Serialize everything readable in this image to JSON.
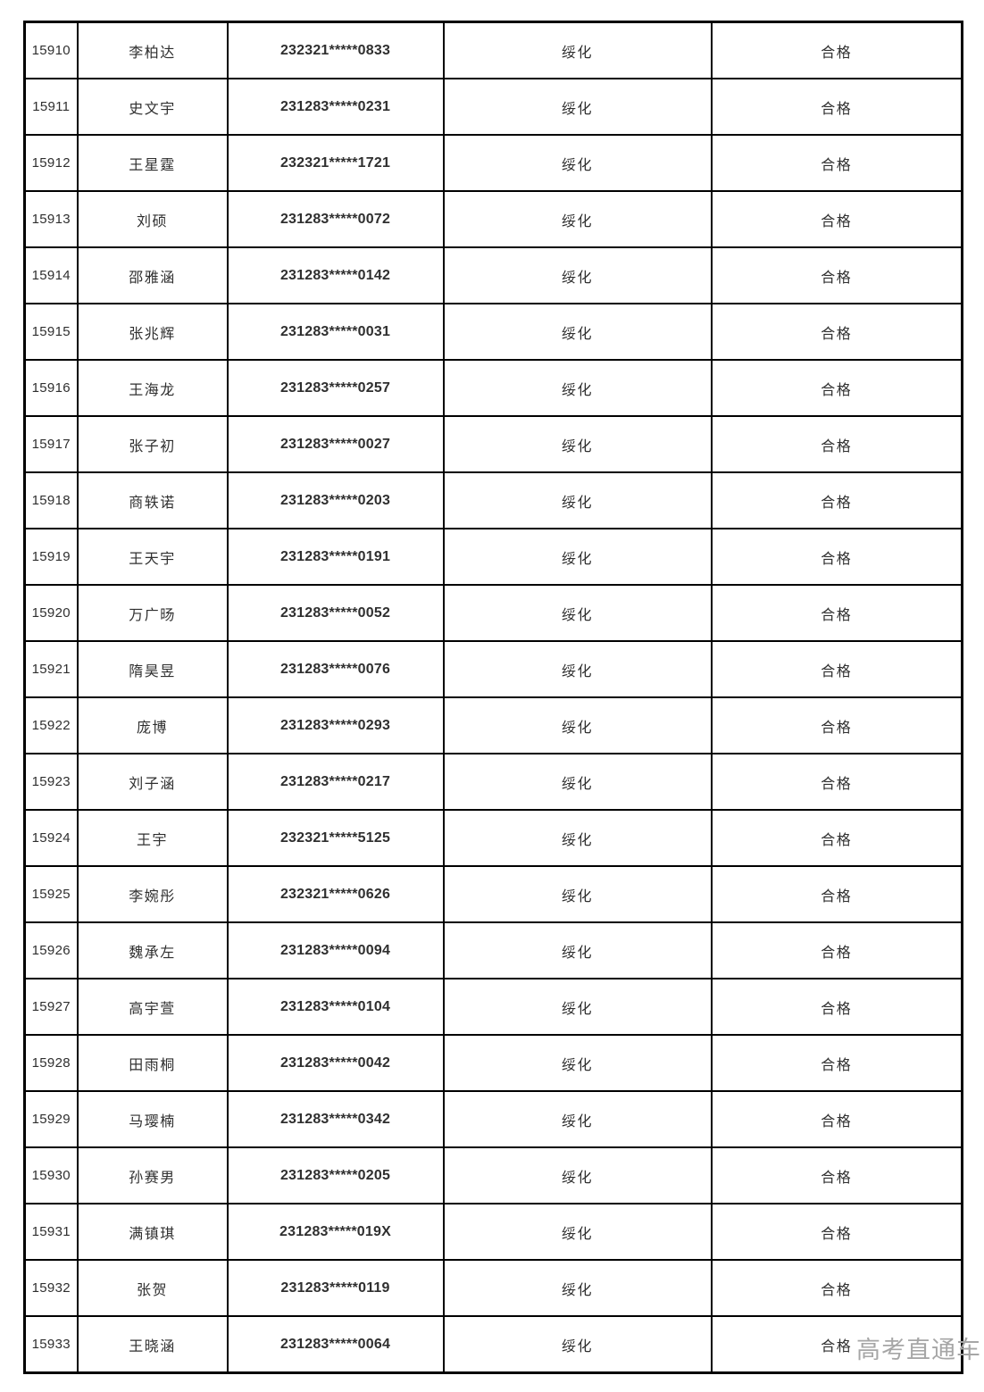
{
  "table": {
    "city_value": "绥化",
    "result_value": "合格",
    "rows": [
      {
        "serial": "15910",
        "name": "李柏达",
        "id_number": "232321*****0833",
        "city": "绥化",
        "result": "合格"
      },
      {
        "serial": "15911",
        "name": "史文宇",
        "id_number": "231283*****0231",
        "city": "绥化",
        "result": "合格"
      },
      {
        "serial": "15912",
        "name": "王星霆",
        "id_number": "232321*****1721",
        "city": "绥化",
        "result": "合格"
      },
      {
        "serial": "15913",
        "name": "刘硕",
        "id_number": "231283*****0072",
        "city": "绥化",
        "result": "合格"
      },
      {
        "serial": "15914",
        "name": "邵雅涵",
        "id_number": "231283*****0142",
        "city": "绥化",
        "result": "合格"
      },
      {
        "serial": "15915",
        "name": "张兆辉",
        "id_number": "231283*****0031",
        "city": "绥化",
        "result": "合格"
      },
      {
        "serial": "15916",
        "name": "王海龙",
        "id_number": "231283*****0257",
        "city": "绥化",
        "result": "合格"
      },
      {
        "serial": "15917",
        "name": "张子初",
        "id_number": "231283*****0027",
        "city": "绥化",
        "result": "合格"
      },
      {
        "serial": "15918",
        "name": "商轶诺",
        "id_number": "231283*****0203",
        "city": "绥化",
        "result": "合格"
      },
      {
        "serial": "15919",
        "name": "王天宇",
        "id_number": "231283*****0191",
        "city": "绥化",
        "result": "合格"
      },
      {
        "serial": "15920",
        "name": "万广旸",
        "id_number": "231283*****0052",
        "city": "绥化",
        "result": "合格"
      },
      {
        "serial": "15921",
        "name": "隋昊昱",
        "id_number": "231283*****0076",
        "city": "绥化",
        "result": "合格"
      },
      {
        "serial": "15922",
        "name": "庞博",
        "id_number": "231283*****0293",
        "city": "绥化",
        "result": "合格"
      },
      {
        "serial": "15923",
        "name": "刘子涵",
        "id_number": "231283*****0217",
        "city": "绥化",
        "result": "合格"
      },
      {
        "serial": "15924",
        "name": "王宇",
        "id_number": "232321*****5125",
        "city": "绥化",
        "result": "合格"
      },
      {
        "serial": "15925",
        "name": "李婉彤",
        "id_number": "232321*****0626",
        "city": "绥化",
        "result": "合格"
      },
      {
        "serial": "15926",
        "name": "魏承左",
        "id_number": "231283*****0094",
        "city": "绥化",
        "result": "合格"
      },
      {
        "serial": "15927",
        "name": "高宇萱",
        "id_number": "231283*****0104",
        "city": "绥化",
        "result": "合格"
      },
      {
        "serial": "15928",
        "name": "田雨桐",
        "id_number": "231283*****0042",
        "city": "绥化",
        "result": "合格"
      },
      {
        "serial": "15929",
        "name": "马璎楠",
        "id_number": "231283*****0342",
        "city": "绥化",
        "result": "合格"
      },
      {
        "serial": "15930",
        "name": "孙赛男",
        "id_number": "231283*****0205",
        "city": "绥化",
        "result": "合格"
      },
      {
        "serial": "15931",
        "name": "满镇琪",
        "id_number": "231283*****019X",
        "city": "绥化",
        "result": "合格"
      },
      {
        "serial": "15932",
        "name": "张贺",
        "id_number": "231283*****0119",
        "city": "绥化",
        "result": "合格"
      },
      {
        "serial": "15933",
        "name": "王晓涵",
        "id_number": "231283*****0064",
        "city": "绥化",
        "result": "合格"
      }
    ]
  },
  "watermark": {
    "text": "高考直通车",
    "color": "#a6a6a6"
  },
  "colors": {
    "table_border": "#000000",
    "cell_text": "#2f2f2f",
    "page_background": "#ffffff"
  }
}
